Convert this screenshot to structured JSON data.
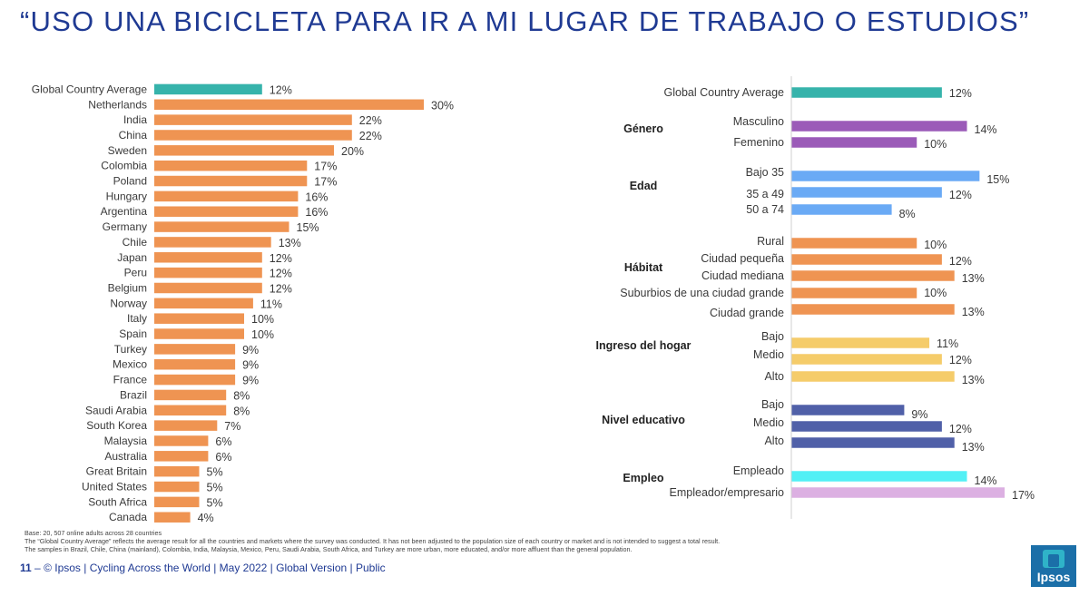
{
  "title": "“USO UNA BICICLETA PARA IR A MI LUGAR DE TRABAJO O ESTUDIOS”",
  "colors": {
    "title": "#1f3a93",
    "average": "#36b3ab",
    "country": "#ef9452",
    "genero": "#9b5bb8",
    "edad": "#6aaaf5",
    "habitat": "#ef9452",
    "ingreso": "#f5cc6a",
    "educativo": "#5060a8",
    "empleado": "#52f0f5",
    "empresario": "#dcb0e2"
  },
  "chart_data": [
    {
      "type": "bar",
      "orientation": "horizontal",
      "title": "",
      "unit": "%",
      "xlim": [
        0,
        30
      ],
      "categories": [
        "Global Country Average",
        "Netherlands",
        "India",
        "China",
        "Sweden",
        "Colombia",
        "Poland",
        "Hungary",
        "Argentina",
        "Germany",
        "Chile",
        "Japan",
        "Peru",
        "Belgium",
        "Norway",
        "Italy",
        "Spain",
        "Turkey",
        "Mexico",
        "France",
        "Brazil",
        "Saudi Arabia",
        "South Korea",
        "Malaysia",
        "Australia",
        "Great Britain",
        "United States",
        "South Africa",
        "Canada"
      ],
      "values": [
        12,
        30,
        22,
        22,
        20,
        17,
        17,
        16,
        16,
        15,
        13,
        12,
        12,
        12,
        11,
        10,
        10,
        9,
        9,
        9,
        8,
        8,
        7,
        6,
        6,
        5,
        5,
        5,
        4
      ],
      "value_labels": [
        "12%",
        "30%",
        "22%",
        "22%",
        "20%",
        "17%",
        "17%",
        "16%",
        "16%",
        "15%",
        "13%",
        "12%",
        "12%",
        "12%",
        "11%",
        "10%",
        "10%",
        "9%",
        "9%",
        "9%",
        "8%",
        "8%",
        "7%",
        "6%",
        "6%",
        "5%",
        "5%",
        "5%",
        "4%"
      ]
    },
    {
      "type": "bar",
      "orientation": "horizontal",
      "title": "",
      "unit": "%",
      "xlim": [
        0,
        17
      ],
      "groups": [
        {
          "key": "avg",
          "label": "",
          "bars": [
            {
              "label": "Global Country Average",
              "value": 12,
              "value_label": "12%",
              "color_key": "average"
            }
          ]
        },
        {
          "key": "genero",
          "label": "Género",
          "bars": [
            {
              "label": "Masculino",
              "value": 14,
              "value_label": "14%",
              "color_key": "genero"
            },
            {
              "label": "Femenino",
              "value": 10,
              "value_label": "10%",
              "color_key": "genero"
            }
          ]
        },
        {
          "key": "edad",
          "label": "Edad",
          "bars": [
            {
              "label": "Bajo 35",
              "value": 15,
              "value_label": "15%",
              "color_key": "edad"
            },
            {
              "label": "35 a 49",
              "value": 12,
              "value_label": "12%",
              "color_key": "edad"
            },
            {
              "label": "50 a 74",
              "value": 8,
              "value_label": "8%",
              "color_key": "edad"
            }
          ]
        },
        {
          "key": "habitat",
          "label": "Hábitat",
          "bars": [
            {
              "label": "Rural",
              "value": 10,
              "value_label": "10%",
              "color_key": "habitat"
            },
            {
              "label": "Ciudad pequeña",
              "value": 12,
              "value_label": "12%",
              "color_key": "habitat"
            },
            {
              "label": "Ciudad mediana",
              "value": 13,
              "value_label": "13%",
              "color_key": "habitat"
            },
            {
              "label": "Suburbios de una ciudad grande",
              "value": 10,
              "value_label": "10%",
              "color_key": "habitat"
            },
            {
              "label": "Ciudad grande",
              "value": 13,
              "value_label": "13%",
              "color_key": "habitat"
            }
          ]
        },
        {
          "key": "ingreso",
          "label": "Ingreso del hogar",
          "bars": [
            {
              "label": "Bajo",
              "value": 11,
              "value_label": "11%",
              "color_key": "ingreso"
            },
            {
              "label": "Medio",
              "value": 12,
              "value_label": "12%",
              "color_key": "ingreso"
            },
            {
              "label": "Alto",
              "value": 13,
              "value_label": "13%",
              "color_key": "ingreso"
            }
          ]
        },
        {
          "key": "educativo",
          "label": "Nivel educativo",
          "bars": [
            {
              "label": "Bajo",
              "value": 9,
              "value_label": "9%",
              "color_key": "educativo"
            },
            {
              "label": "Medio",
              "value": 12,
              "value_label": "12%",
              "color_key": "educativo"
            },
            {
              "label": "Alto",
              "value": 13,
              "value_label": "13%",
              "color_key": "educativo"
            }
          ]
        },
        {
          "key": "empleo",
          "label": "Empleo",
          "bars": [
            {
              "label": "Empleado",
              "value": 14,
              "value_label": "14%",
              "color_key": "empleado"
            },
            {
              "label": "Empleador/empresario",
              "value": 17,
              "value_label": "17%",
              "color_key": "empresario"
            }
          ]
        }
      ]
    }
  ],
  "footnotes": [
    "Base: 20, 507 online adults across 28 countries",
    "The “Global Country Average” reflects the average result for all the countries and markets where the survey was conducted. It has not been adjusted to the population size of each country or market and is not intended to suggest a total result.",
    "The samples in Brazil, Chile, China (mainland), Colombia, India, Malaysia, Mexico, Peru, Saudi Arabia, South Africa, and Turkey are more urban, more educated, and/or more affluent than the general population."
  ],
  "footer": {
    "page": "11",
    "dash": "–",
    "text": "© Ipsos | Cycling Across the World | May 2022 | Global Version | Public"
  },
  "logo": {
    "text": "Ipsos"
  }
}
